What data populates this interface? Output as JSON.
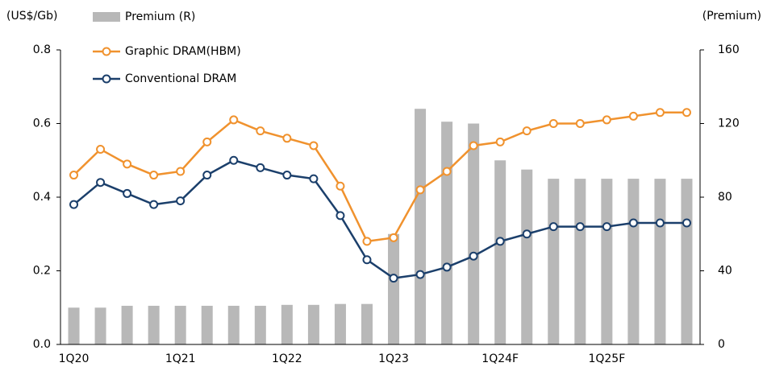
{
  "chart_data": {
    "type": "combo",
    "y_label": "(US$/Gb)",
    "y2_label": "(Premium)",
    "categories": [
      "1Q20",
      null,
      null,
      null,
      "1Q21",
      null,
      null,
      null,
      "1Q22",
      null,
      null,
      null,
      "1Q23",
      null,
      null,
      null,
      "1Q24F",
      null,
      null,
      null,
      "1Q25F",
      null,
      null,
      null
    ],
    "series": [
      {
        "name": "Premium (R)",
        "type": "bar",
        "axis": "y2",
        "color": "#b8b8b8",
        "values": [
          20,
          20,
          21,
          21,
          21,
          21,
          21,
          21,
          21.5,
          21.5,
          22,
          22,
          60,
          128,
          121,
          120,
          100,
          95,
          90,
          90,
          90,
          90,
          90,
          90
        ]
      },
      {
        "name": "Graphic DRAM(HBM)",
        "type": "line",
        "color": "#f0922e",
        "values": [
          0.46,
          0.53,
          0.49,
          0.46,
          0.47,
          0.55,
          0.61,
          0.58,
          0.56,
          0.54,
          0.43,
          0.28,
          0.29,
          0.42,
          0.47,
          0.54,
          0.55,
          0.58,
          0.6,
          0.6,
          0.61,
          0.62,
          0.63,
          0.63
        ]
      },
      {
        "name": "Conventional DRAM",
        "type": "line",
        "color": "#1b3f6b",
        "values": [
          0.38,
          0.44,
          0.41,
          0.38,
          0.39,
          0.46,
          0.5,
          0.48,
          0.46,
          0.45,
          0.35,
          0.23,
          0.18,
          0.19,
          0.21,
          0.24,
          0.28,
          0.3,
          0.32,
          0.32,
          0.32,
          0.33,
          0.33,
          0.33
        ]
      }
    ],
    "ylim": [
      0,
      0.8
    ],
    "yticks": [
      {
        "value": 0,
        "label": "0.0"
      },
      0.2,
      0.4,
      0.6,
      0.8
    ],
    "y2lim": [
      0,
      160
    ],
    "y2ticks": [
      0,
      40,
      80,
      120,
      160
    ],
    "legend": "top-left"
  }
}
